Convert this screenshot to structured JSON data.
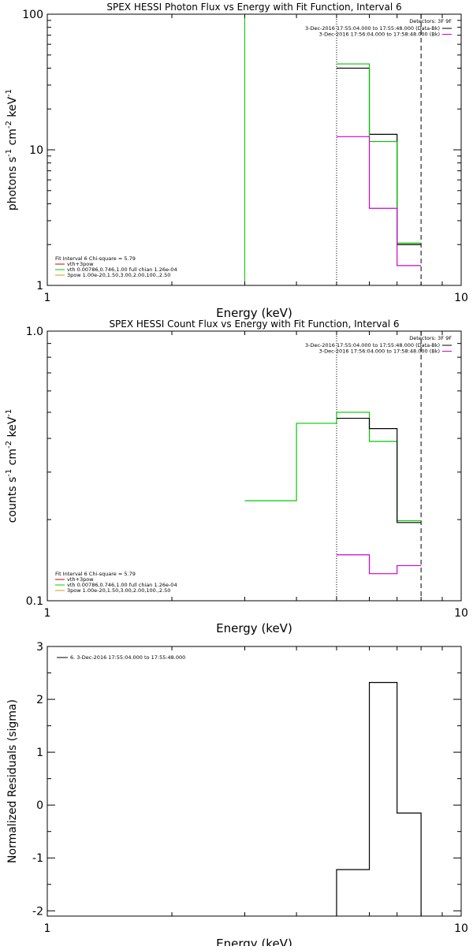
{
  "colors": {
    "background": "#ffffff",
    "axes": "#000000",
    "data": "#000000",
    "background_model": "#d200d2",
    "fit": "#00c800",
    "vth": "#00c800",
    "pow": "#c8a000",
    "vthpow": "#c80000"
  },
  "chart_data": [
    {
      "type": "line",
      "title": "SPEX HESSI Photon Flux vs Energy with Fit Function, Interval 6",
      "xlabel": "Energy (keV)",
      "ylabel_parts": [
        "photons s",
        "-1",
        " cm",
        "-2",
        " keV",
        "-1"
      ],
      "x_scale": "log",
      "y_scale": "log",
      "xlim": [
        1,
        10
      ],
      "ylim": [
        1,
        100
      ],
      "x_ticks": [
        {
          "v": 1,
          "label": "1"
        },
        {
          "v": 10,
          "label": "10"
        }
      ],
      "y_ticks": [
        {
          "v": 1,
          "label": "1"
        },
        {
          "v": 10,
          "label": "10"
        },
        {
          "v": 100,
          "label": "100"
        }
      ],
      "grid": false,
      "vlines": [
        {
          "x": 3.0,
          "style": "solid",
          "series": "fit"
        },
        {
          "x": 5.0,
          "style": "dotted",
          "series": "data"
        },
        {
          "x": 8.0,
          "style": "dashed",
          "series": "data"
        }
      ],
      "legend_topright": {
        "header": "Detectors: 3F 9F",
        "entries": [
          {
            "label": "3-Dec-2016 17:55:04.000 to 17:55:48.000 (Data-Bk)",
            "series": "data"
          },
          {
            "label": "3-Dec-2016 17:56:04.000 to 17:58:48.000 (Bk)",
            "series": "background_model"
          }
        ]
      },
      "legend_bottomleft": {
        "header": "Fit Interval 6   Chi-square = 5.79",
        "entries": [
          {
            "label": "vth+3pow",
            "series": "vthpow"
          },
          {
            "label": "vth 0.00786,0.746,1.00   full chian 1.26e-04",
            "series": "vth"
          },
          {
            "label": "3pow 1.00e-20,1.50,3.00,2.00,100.,2.50",
            "series": "pow"
          }
        ]
      },
      "series": [
        {
          "key": "data",
          "edges": [
            5.0,
            6.0,
            7.0,
            8.0
          ],
          "values": [
            40,
            13,
            2.0
          ]
        },
        {
          "key": "fit",
          "edges": [
            5.0,
            6.0,
            7.0,
            8.0
          ],
          "values": [
            43,
            11.5,
            2.05
          ]
        },
        {
          "key": "background_model",
          "edges": [
            5.0,
            6.0,
            7.0,
            8.0
          ],
          "values": [
            12.5,
            3.7,
            1.4
          ]
        }
      ]
    },
    {
      "type": "line",
      "title": "SPEX HESSI Count Flux vs Energy with Fit Function, Interval 6",
      "xlabel": "Energy (keV)",
      "ylabel_parts": [
        "counts s",
        "-1",
        " cm",
        "-2",
        " keV",
        "-1"
      ],
      "x_scale": "log",
      "y_scale": "log",
      "xlim": [
        1,
        10
      ],
      "ylim": [
        0.1,
        1.0
      ],
      "x_ticks": [
        {
          "v": 1,
          "label": "1"
        },
        {
          "v": 10,
          "label": "10"
        }
      ],
      "y_ticks": [
        {
          "v": 0.1,
          "label": "0.1"
        },
        {
          "v": 1.0,
          "label": "1.0"
        }
      ],
      "grid": false,
      "vlines": [
        {
          "x": 5.0,
          "style": "dotted",
          "series": "data"
        },
        {
          "x": 8.0,
          "style": "dashed",
          "series": "data"
        }
      ],
      "legend_topright": {
        "header": "Detectors: 3F 9F",
        "entries": [
          {
            "label": "3-Dec-2016 17:55:04.000 to 17:55:48.000 (Data-Bk)",
            "series": "data"
          },
          {
            "label": "3-Dec-2016 17:56:04.000 to 17:58:48.000 (Bk)",
            "series": "background_model"
          }
        ]
      },
      "legend_bottomleft": {
        "header": "Fit Interval 6   Chi-square = 5.79",
        "entries": [
          {
            "label": "vth+3pow",
            "series": "vthpow"
          },
          {
            "label": "vth 0.00786,0.746,1.00   full chian 1.26e-04",
            "series": "vth"
          },
          {
            "label": "3pow 1.00e-20,1.50,3.00,2.00,100.,2.50",
            "series": "pow"
          }
        ]
      },
      "series": [
        {
          "key": "fit",
          "edges": [
            3.0,
            4.0,
            5.0,
            6.0,
            7.0,
            8.0
          ],
          "values": [
            0.235,
            0.455,
            0.5,
            0.39,
            0.198
          ]
        },
        {
          "key": "data",
          "edges": [
            5.0,
            6.0,
            7.0,
            8.0
          ],
          "values": [
            0.475,
            0.435,
            0.195
          ]
        },
        {
          "key": "background_model",
          "edges": [
            5.0,
            6.0,
            7.0,
            8.0
          ],
          "values": [
            0.148,
            0.126,
            0.135
          ]
        }
      ]
    },
    {
      "type": "line",
      "title": "",
      "xlabel": "Energy (keV)",
      "ylabel_parts": [
        "Normalized Residuals (sigma)"
      ],
      "x_scale": "log",
      "y_scale": "linear",
      "xlim": [
        1,
        10
      ],
      "ylim": [
        -2.1,
        3.0
      ],
      "x_ticks": [
        {
          "v": 1,
          "label": "1"
        },
        {
          "v": 10,
          "label": "10"
        }
      ],
      "y_ticks": [
        {
          "v": -2,
          "label": "-2"
        },
        {
          "v": -1,
          "label": "-1"
        },
        {
          "v": 0,
          "label": "0"
        },
        {
          "v": 1,
          "label": "1"
        },
        {
          "v": 2,
          "label": "2"
        },
        {
          "v": 3,
          "label": "3"
        }
      ],
      "grid": false,
      "vlines": [],
      "legend_topleft": {
        "entries": [
          {
            "label": "6.  3-Dec-2016 17:55:04.000 to 17:55:48.000",
            "series": "data"
          }
        ]
      },
      "series": [
        {
          "key": "data",
          "edges": [
            5.0,
            6.0,
            7.0,
            8.0
          ],
          "values": [
            -1.22,
            2.32,
            -0.15
          ],
          "drop_to_axis": true
        }
      ]
    }
  ]
}
